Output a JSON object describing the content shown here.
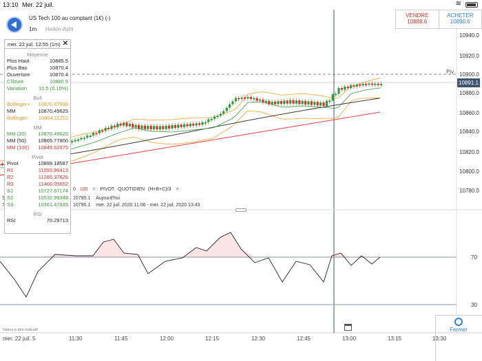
{
  "status": {
    "time": "13:10",
    "date": "Mer. 22 juil."
  },
  "header": {
    "title": "US Tech 100 au comptant (1€) (-)",
    "timeframe": "1m",
    "chart_type": "Heikin-Ashi"
  },
  "trade": {
    "sell_label": "VENDRE",
    "sell_price": "10888.6",
    "buy_label": "ACHETER",
    "buy_price": "10890.6"
  },
  "y_axis": [
    "10940.0",
    "10920.0",
    "10900.0",
    "10880.0",
    "10860.0",
    "10840.0",
    "10820.0",
    "10800.0",
    "10780.0"
  ],
  "current_price": "10891.1",
  "pivot_tag": "Piv",
  "info": {
    "date": "mer. 22 juil. 12:55 (1m)",
    "moyenne_title": "Moyenne",
    "plus_haut_l": "Plus Haut",
    "plus_haut": "10885.5",
    "plus_bas_l": "Plus Bas",
    "plus_bas": "10870.4",
    "ouverture_l": "Ouverture",
    "ouverture": "10870.4",
    "cloture_l": "Clôture",
    "cloture": "10880.9",
    "variation_l": "Variation",
    "variation": "10.5 (0.10%)",
    "boll_title": "Boll",
    "boll_plus_l": "Bollinger+",
    "boll_plus": "10876.87938",
    "boll_mm_l": "MM",
    "boll_mm": "10870.49625",
    "boll_minus_l": "Bollinger-",
    "boll_minus": "10864.11251",
    "mm_title": "MM",
    "mm20_l": "MM (20)",
    "mm20": "10870.49625",
    "mm50_l": "MM (50)",
    "mm50": "10865.77800",
    "mm100_l": "MM (100)",
    "mm100": "10849.62975",
    "pivot_title": "Pivot",
    "pivot_l": "Pivot",
    "pivot": "10899.18587",
    "r1_l": "R1",
    "r1": "11093.86413",
    "r2_l": "R2",
    "r2": "11265.37826",
    "r3_l": "R3",
    "r3": "11460.05652",
    "s1_l": "S1",
    "s1": "10727.67174",
    "s2_l": "S2",
    "s2": "10532.99348",
    "s3_l": "S3",
    "s3": "10361.47935",
    "rsi_title": "RSI",
    "rsi_l": "RSI",
    "rsi": "70.29713"
  },
  "studies": {
    "line1_a": "0",
    "line1_b": "100",
    "line1_c": "PIVOT",
    "line1_d": "QUOTIDIEN",
    "line1_e": "(H+B+C)/3",
    "line2_a": "10795.1",
    "line2_b": "Aujourd'hui",
    "line3_a": "10795.1",
    "line3_b": "mer. 22 juil. 2020 11:06 - mer. 22 juil. 2020 13:43",
    "s_left": "S",
    "seven_left": "7"
  },
  "rsi_levels": [
    "70",
    "30"
  ],
  "x_axis": [
    "mer. 22 juil.",
    "5",
    "11:30",
    "11:45",
    "12:00",
    "12:15",
    "12:30",
    "12:45",
    "13:00",
    "13:15",
    "13:30"
  ],
  "footnote": "Valeur à titre indicatif",
  "fermer_label": "Fermer"
}
